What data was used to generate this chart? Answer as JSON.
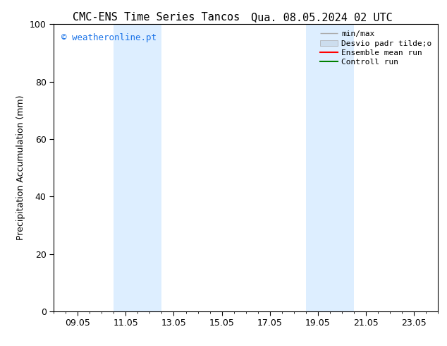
{
  "title_left": "CMC-ENS Time Series Tancos",
  "title_right": "Qua. 08.05.2024 02 UTC",
  "ylabel": "Precipitation Accumulation (mm)",
  "ylim": [
    0,
    100
  ],
  "yticks": [
    0,
    20,
    40,
    60,
    80,
    100
  ],
  "xlim": [
    0,
    16
  ],
  "xtick_labels": [
    "09.05",
    "11.05",
    "13.05",
    "15.05",
    "17.05",
    "19.05",
    "21.05",
    "23.05"
  ],
  "xtick_positions": [
    1.0,
    3.0,
    5.0,
    7.0,
    9.0,
    11.0,
    13.0,
    15.0
  ],
  "shaded_bands": [
    {
      "x_start": 2.5,
      "x_end": 4.5
    },
    {
      "x_start": 10.5,
      "x_end": 12.5
    }
  ],
  "band_color": "#ddeeff",
  "watermark_text": "© weatheronline.pt",
  "watermark_color": "#1a73e8",
  "legend_entries": [
    {
      "label": "min/max",
      "color": "#aaaaaa",
      "lw": 1.0,
      "style": "solid",
      "type": "line_caps"
    },
    {
      "label": "Desvio padr tilde;o",
      "color": "#ccddee",
      "lw": 5,
      "style": "solid",
      "type": "band"
    },
    {
      "label": "Ensemble mean run",
      "color": "red",
      "lw": 1.5,
      "style": "solid",
      "type": "line"
    },
    {
      "label": "Controll run",
      "color": "green",
      "lw": 1.5,
      "style": "solid",
      "type": "line"
    }
  ],
  "bg_color": "#ffffff",
  "spine_color": "#000000",
  "title_fontsize": 11,
  "ylabel_fontsize": 9,
  "tick_fontsize": 9,
  "watermark_fontsize": 9,
  "legend_fontsize": 8
}
